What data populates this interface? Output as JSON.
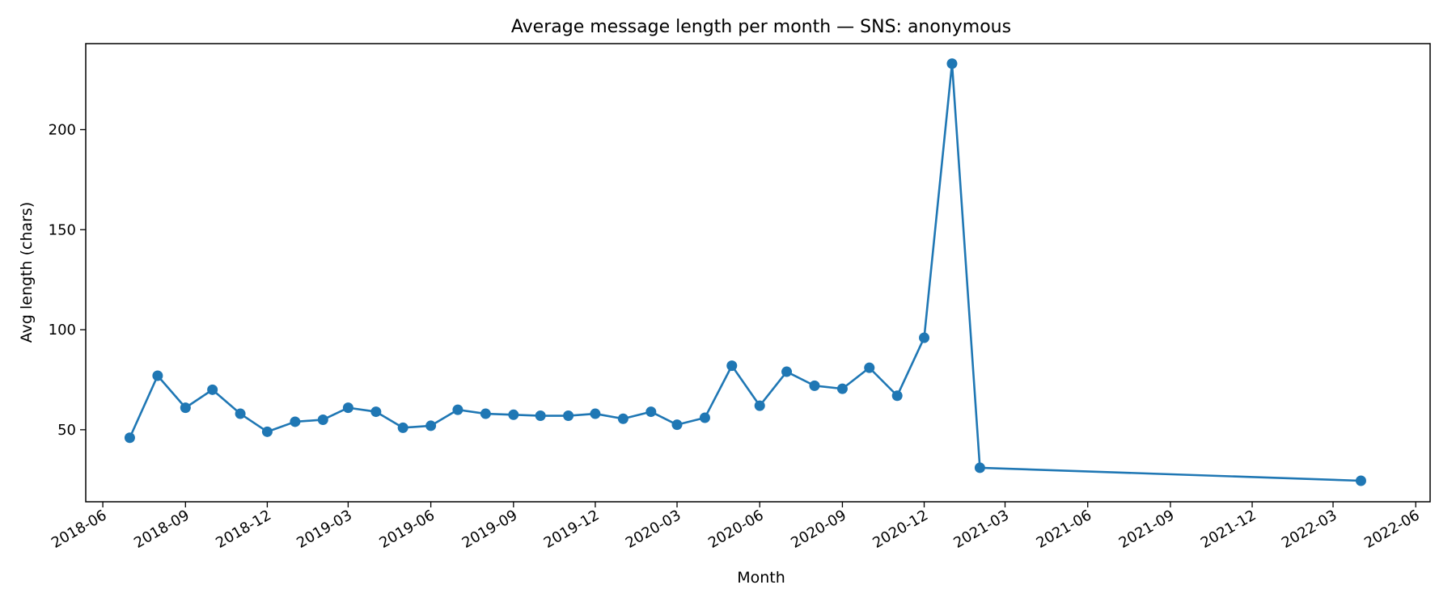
{
  "chart_data": {
    "type": "line",
    "title": "Average message length per month — SNS: anonymous",
    "xlabel": "Month",
    "ylabel": "Avg length (chars)",
    "xlim": [
      "2018-05-13",
      "2022-06-17"
    ],
    "ylim": [
      14,
      243
    ],
    "grid": false,
    "x_ticks": [
      "2018-06",
      "2018-09",
      "2018-12",
      "2019-03",
      "2019-06",
      "2019-09",
      "2019-12",
      "2020-03",
      "2020-06",
      "2020-09",
      "2020-12",
      "2021-03",
      "2021-06",
      "2021-09",
      "2021-12",
      "2022-03",
      "2022-06"
    ],
    "y_ticks": [
      50,
      100,
      150,
      200
    ],
    "series": [
      {
        "color": "#1f77b4",
        "x": [
          "2018-07",
          "2018-08",
          "2018-09",
          "2018-10",
          "2018-11",
          "2018-12",
          "2019-01",
          "2019-02",
          "2019-03",
          "2019-04",
          "2019-05",
          "2019-06",
          "2019-07",
          "2019-08",
          "2019-09",
          "2019-10",
          "2019-11",
          "2019-12",
          "2020-01",
          "2020-02",
          "2020-03",
          "2020-04",
          "2020-05",
          "2020-06",
          "2020-07",
          "2020-08",
          "2020-09",
          "2020-10",
          "2020-11",
          "2020-12",
          "2021-01",
          "2021-02",
          "2022-04"
        ],
        "y": [
          46,
          77,
          61,
          70,
          58,
          49,
          54,
          55,
          61,
          59,
          51,
          52,
          60,
          58,
          57.5,
          57,
          57,
          58,
          55.5,
          59,
          52.5,
          56,
          82,
          62,
          79,
          72,
          70.5,
          81,
          67,
          96,
          233,
          31,
          24.5
        ]
      }
    ]
  }
}
